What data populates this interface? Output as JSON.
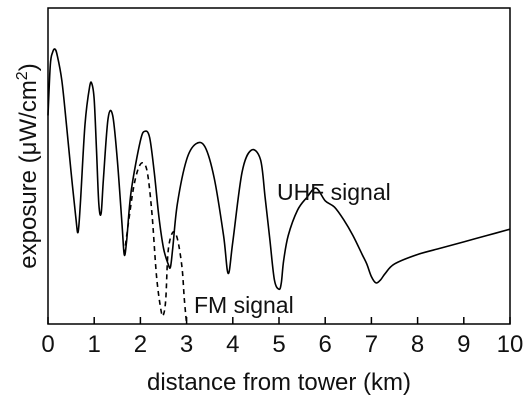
{
  "chart_data": {
    "type": "line",
    "title": "",
    "xlabel": "distance from tower (km)",
    "ylabel_parts": {
      "before_unit": "exposure (",
      "unit_mu": "μ",
      "unit_rest": "W/cm",
      "superscript": "2",
      "closing": ")"
    },
    "xlim": [
      0,
      10
    ],
    "ylim": [
      0,
      1
    ],
    "x_ticks": [
      "0",
      "1",
      "2",
      "3",
      "4",
      "5",
      "6",
      "7",
      "8",
      "9",
      "10"
    ],
    "grid": false,
    "y_ticks_shown": false,
    "series": [
      {
        "name": "UHF signal",
        "style": "solid",
        "color": "#000000",
        "x": [
          0.0,
          0.05,
          0.1,
          0.15,
          0.2,
          0.3,
          0.4,
          0.5,
          0.6,
          0.65,
          0.7,
          0.8,
          0.9,
          0.95,
          1.0,
          1.05,
          1.1,
          1.15,
          1.2,
          1.3,
          1.4,
          1.5,
          1.6,
          1.65,
          1.7,
          1.8,
          2.0,
          2.1,
          2.2,
          2.3,
          2.4,
          2.5,
          2.6,
          2.65,
          2.7,
          2.8,
          3.0,
          3.2,
          3.4,
          3.6,
          3.8,
          3.9,
          4.0,
          4.2,
          4.4,
          4.6,
          4.7,
          4.8,
          4.9,
          5.0,
          5.05,
          5.1,
          5.2,
          5.4,
          5.6,
          5.8,
          6.0,
          6.2,
          6.4,
          6.6,
          6.8,
          6.9,
          7.0,
          7.1,
          7.2,
          7.3,
          7.5,
          8.0,
          8.5,
          9.0,
          9.5,
          10.0
        ],
        "y": [
          0.66,
          0.82,
          0.86,
          0.87,
          0.85,
          0.77,
          0.63,
          0.48,
          0.34,
          0.29,
          0.38,
          0.63,
          0.75,
          0.76,
          0.71,
          0.55,
          0.38,
          0.35,
          0.46,
          0.65,
          0.66,
          0.52,
          0.32,
          0.22,
          0.26,
          0.42,
          0.58,
          0.61,
          0.59,
          0.48,
          0.34,
          0.24,
          0.19,
          0.18,
          0.24,
          0.38,
          0.52,
          0.57,
          0.56,
          0.46,
          0.28,
          0.16,
          0.26,
          0.48,
          0.55,
          0.52,
          0.4,
          0.27,
          0.14,
          0.11,
          0.13,
          0.2,
          0.28,
          0.36,
          0.4,
          0.43,
          0.39,
          0.37,
          0.33,
          0.28,
          0.22,
          0.19,
          0.15,
          0.13,
          0.14,
          0.16,
          0.19,
          0.22,
          0.24,
          0.26,
          0.28,
          0.3
        ]
      },
      {
        "name": "FM signal",
        "style": "dashed",
        "color": "#000000",
        "x": [
          1.65,
          1.75,
          1.85,
          1.95,
          2.05,
          2.15,
          2.25,
          2.35,
          2.45,
          2.5,
          2.55,
          2.6,
          2.7,
          2.8,
          2.9,
          2.95,
          3.0
        ],
        "y": [
          0.22,
          0.33,
          0.43,
          0.49,
          0.51,
          0.48,
          0.35,
          0.15,
          0.04,
          0.03,
          0.08,
          0.23,
          0.29,
          0.27,
          0.18,
          0.08,
          0.0
        ]
      }
    ],
    "annotations": {
      "uhf_label": "UHF signal",
      "fm_label": "FM signal"
    }
  }
}
